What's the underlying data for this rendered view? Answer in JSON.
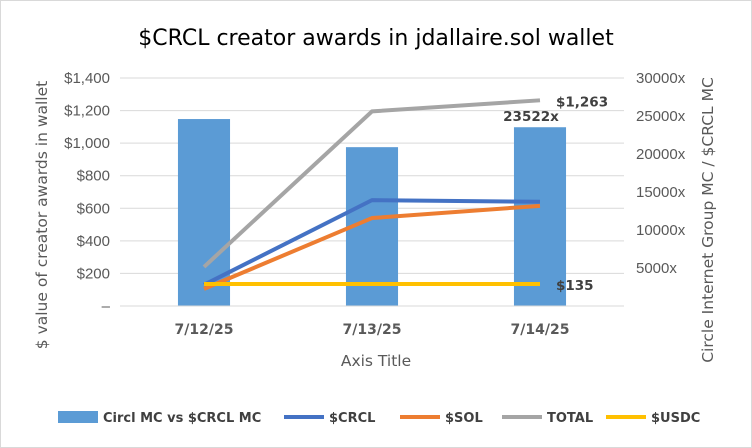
{
  "chart_data": {
    "type": "bar",
    "title": "$CRCL creator awards in jdallaire.sol wallet",
    "xlabel": "Axis Title",
    "ylabel": "$ value of creator awards in wallet",
    "y2label": "Circle Internet Group MC / $CRCL MC",
    "categories": [
      "7/12/25",
      "7/13/25",
      "7/14/25"
    ],
    "ylim": [
      0,
      1400
    ],
    "y_ticks": [
      0,
      200,
      400,
      600,
      800,
      1000,
      1200,
      1400
    ],
    "y_tick_labels": [
      "–",
      "$200",
      "$400",
      "$600",
      "$800",
      "$1,000",
      "$1,200",
      "$1,400"
    ],
    "y2lim": [
      0,
      30000
    ],
    "y2_ticks": [
      5000,
      10000,
      15000,
      20000,
      25000,
      30000
    ],
    "y2_tick_labels": [
      "5000x",
      "10000x",
      "15000x",
      "20000x",
      "25000x",
      "30000x"
    ],
    "grid": true,
    "legend_position": "bottom",
    "series": [
      {
        "name": "Circl MC vs $CRCL MC",
        "type": "bar",
        "axis": "secondary",
        "color": "#5B9BD5",
        "values": [
          24600,
          20900,
          23522
        ],
        "data_labels": [
          "",
          "",
          "23522x"
        ]
      },
      {
        "name": "$CRCL",
        "type": "line",
        "axis": "primary",
        "color": "#4472C4",
        "values": [
          130,
          650,
          640
        ],
        "data_labels": [
          "",
          "",
          ""
        ]
      },
      {
        "name": "$SOL",
        "type": "line",
        "axis": "primary",
        "color": "#ED7D31",
        "values": [
          105,
          540,
          615
        ],
        "data_labels": [
          "",
          "",
          ""
        ]
      },
      {
        "name": "TOTAL",
        "type": "line",
        "axis": "primary",
        "color": "#A5A5A5",
        "values": [
          240,
          1195,
          1263
        ],
        "data_labels": [
          "",
          "",
          "$1,263"
        ]
      },
      {
        "name": "$USDC",
        "type": "line",
        "axis": "primary",
        "color": "#FFC000",
        "values": [
          135,
          135,
          135
        ],
        "data_labels": [
          "",
          "",
          "$135"
        ]
      }
    ]
  }
}
